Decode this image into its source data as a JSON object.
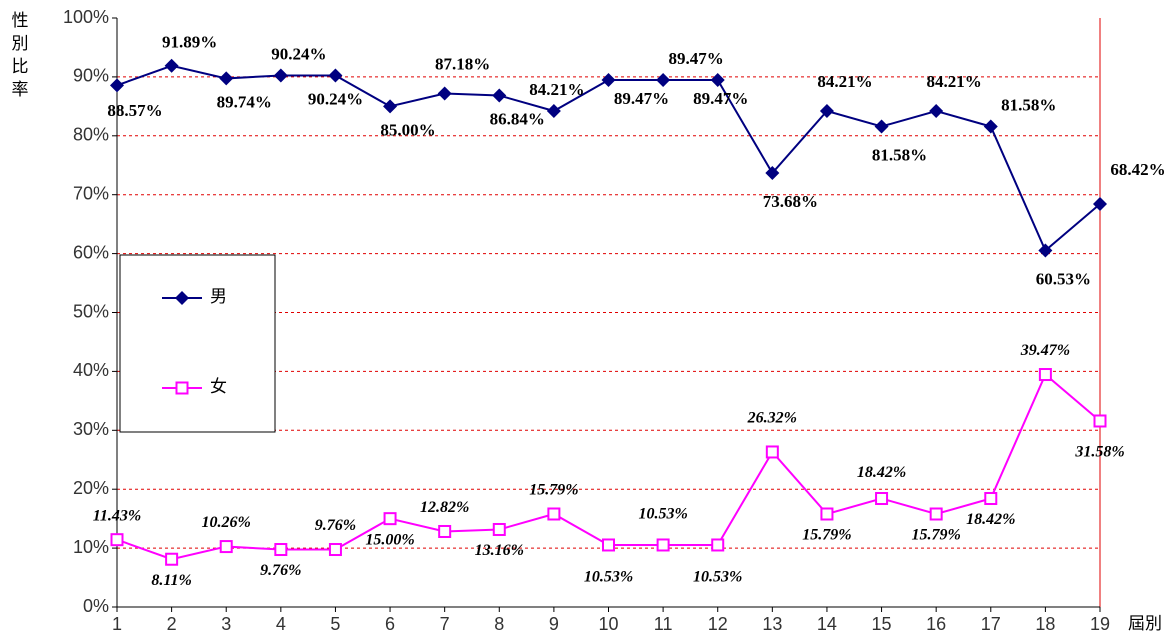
{
  "chart_data": {
    "type": "line",
    "y_label": "性別比率",
    "x_label": "屆別",
    "x": [
      1,
      2,
      3,
      4,
      5,
      6,
      7,
      8,
      9,
      10,
      11,
      12,
      13,
      14,
      15,
      16,
      17,
      18,
      19
    ],
    "xlim": [
      1,
      19
    ],
    "xticks": [
      1,
      2,
      3,
      4,
      5,
      6,
      7,
      8,
      9,
      10,
      11,
      12,
      13,
      14,
      15,
      16,
      17,
      18,
      19
    ],
    "ylim": [
      0,
      100
    ],
    "yticks": [
      {
        "value": 0,
        "label": "0%"
      },
      {
        "value": 10,
        "label": "10%"
      },
      {
        "value": 20,
        "label": "20%"
      },
      {
        "value": 30,
        "label": "30%"
      },
      {
        "value": 40,
        "label": "40%"
      },
      {
        "value": 50,
        "label": "50%"
      },
      {
        "value": 60,
        "label": "60%"
      },
      {
        "value": 70,
        "label": "70%"
      },
      {
        "value": 80,
        "label": "80%"
      },
      {
        "value": 90,
        "label": "90%"
      },
      {
        "value": 100,
        "label": "100%"
      }
    ],
    "grid": true,
    "grid_color": "#e00000",
    "series": [
      {
        "name": "男",
        "color": "#000080",
        "marker": "diamond",
        "values": [
          88.57,
          91.89,
          89.74,
          90.24,
          90.24,
          85.0,
          87.18,
          86.84,
          84.21,
          89.47,
          89.47,
          89.47,
          73.68,
          84.21,
          81.58,
          84.21,
          81.58,
          60.53,
          68.42
        ],
        "value_labels": [
          "88.57%",
          "91.89%",
          "89.74%",
          "90.24%",
          "90.24%",
          "85.00%",
          "87.18%",
          "86.84%",
          "84.21%",
          "89.47%",
          "89.47%",
          "89.47%",
          "73.68%",
          "84.21%",
          "81.58%",
          "84.21%",
          "81.58%",
          "60.53%",
          "68.42%"
        ]
      },
      {
        "name": "女",
        "color": "#ff00ff",
        "marker": "square",
        "values": [
          11.43,
          8.11,
          10.26,
          9.76,
          9.76,
          15.0,
          12.82,
          13.16,
          15.79,
          10.53,
          10.53,
          10.53,
          26.32,
          15.79,
          18.42,
          15.79,
          18.42,
          39.47,
          31.58
        ],
        "value_labels": [
          "11.43%",
          "8.11%",
          "10.26%",
          "9.76%",
          "9.76%",
          "15.00%",
          "12.82%",
          "13.16%",
          "15.79%",
          "10.53%",
          "10.53%",
          "10.53%",
          "26.32%",
          "15.79%",
          "18.42%",
          "15.79%",
          "18.42%",
          "39.47%",
          "31.58%"
        ]
      }
    ]
  }
}
